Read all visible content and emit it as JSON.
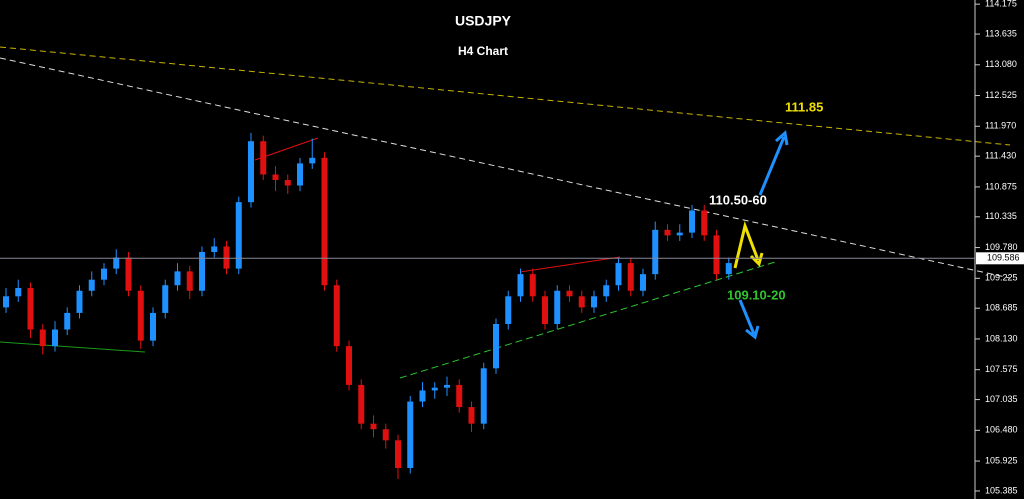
{
  "chart_data": {
    "type": "candlestick",
    "title": "USDJPY",
    "subtitle": "H4 Chart",
    "up_color": "#1e90ff",
    "down_color": "#e01010",
    "open": [
      108.7,
      108.9,
      109.05,
      108.3,
      108.0,
      108.3,
      108.6,
      109.0,
      109.2,
      109.4,
      109.6,
      109.0,
      108.1,
      108.6,
      109.1,
      109.35,
      109.0,
      109.7,
      109.8,
      109.4,
      110.6,
      111.7,
      111.1,
      111.0,
      110.9,
      111.3,
      111.4,
      109.1,
      108.0,
      107.3,
      106.6,
      106.5,
      106.3,
      105.8,
      107.0,
      107.2,
      107.25,
      107.3,
      106.9,
      106.6,
      107.6,
      108.4,
      108.9,
      109.3,
      108.9,
      108.4,
      109.0,
      108.9,
      108.7,
      108.9,
      109.1,
      109.5,
      109.0,
      109.3,
      110.1,
      110.0,
      110.05,
      110.45,
      110.0,
      109.3
    ],
    "high": [
      109.05,
      109.2,
      109.15,
      108.4,
      108.45,
      108.7,
      109.1,
      109.35,
      109.5,
      109.75,
      109.7,
      109.1,
      108.7,
      109.2,
      109.5,
      109.45,
      109.8,
      109.95,
      109.9,
      110.7,
      111.85,
      111.8,
      111.25,
      111.1,
      111.4,
      111.75,
      111.5,
      109.2,
      108.1,
      107.4,
      106.75,
      106.6,
      106.4,
      107.1,
      107.35,
      107.35,
      107.45,
      107.4,
      107.0,
      107.7,
      108.5,
      109.0,
      109.4,
      109.4,
      109.0,
      109.1,
      109.1,
      109.0,
      109.0,
      109.2,
      109.6,
      109.6,
      109.4,
      110.25,
      110.2,
      110.2,
      110.55,
      110.55,
      110.1,
      109.6
    ],
    "low": [
      108.6,
      108.8,
      108.15,
      107.85,
      107.9,
      108.2,
      108.5,
      108.9,
      109.1,
      109.3,
      108.9,
      107.95,
      108.0,
      108.5,
      109.0,
      108.85,
      108.9,
      109.6,
      109.3,
      109.3,
      110.5,
      111.0,
      110.8,
      110.75,
      110.8,
      111.2,
      109.0,
      107.9,
      107.2,
      106.5,
      106.35,
      106.15,
      105.6,
      105.7,
      106.9,
      107.05,
      107.1,
      106.8,
      106.45,
      106.5,
      107.5,
      108.3,
      108.8,
      108.8,
      108.3,
      108.3,
      108.8,
      108.6,
      108.6,
      108.8,
      109.0,
      108.9,
      108.9,
      109.2,
      109.9,
      109.9,
      109.95,
      109.9,
      109.2,
      109.2
    ],
    "close": [
      108.9,
      109.05,
      108.3,
      108.0,
      108.3,
      108.6,
      109.0,
      109.2,
      109.4,
      109.6,
      109.0,
      108.1,
      108.6,
      109.1,
      109.35,
      109.0,
      109.7,
      109.8,
      109.4,
      110.6,
      111.7,
      111.1,
      111.0,
      110.9,
      111.3,
      111.4,
      109.1,
      108.0,
      107.3,
      106.6,
      106.5,
      106.3,
      105.8,
      107.0,
      107.2,
      107.25,
      107.3,
      106.9,
      106.6,
      107.6,
      108.4,
      108.9,
      109.3,
      108.9,
      108.4,
      109.0,
      108.9,
      108.7,
      108.9,
      109.1,
      109.5,
      109.0,
      109.3,
      110.1,
      110.0,
      110.05,
      110.45,
      110.0,
      109.3,
      109.5
    ],
    "ylim": [
      105.24,
      114.25
    ],
    "yticks": [
      114.175,
      113.635,
      {
        "value": 113.08,
        "label": "113.080"
      },
      112.525,
      {
        "value": 111.97,
        "label": "111.970"
      },
      {
        "value": 111.43,
        "label": "111.430"
      },
      110.875,
      110.335,
      {
        "value": 109.78,
        "label": "109.780"
      },
      109.225,
      108.685,
      {
        "value": 108.13,
        "label": "108.130"
      },
      107.575,
      107.035,
      {
        "value": 106.48,
        "label": "106.480"
      },
      105.925,
      105.385
    ],
    "current_price": 109.586,
    "annotations": [
      "111.85",
      "110.50-60",
      "109.10-20"
    ]
  }
}
